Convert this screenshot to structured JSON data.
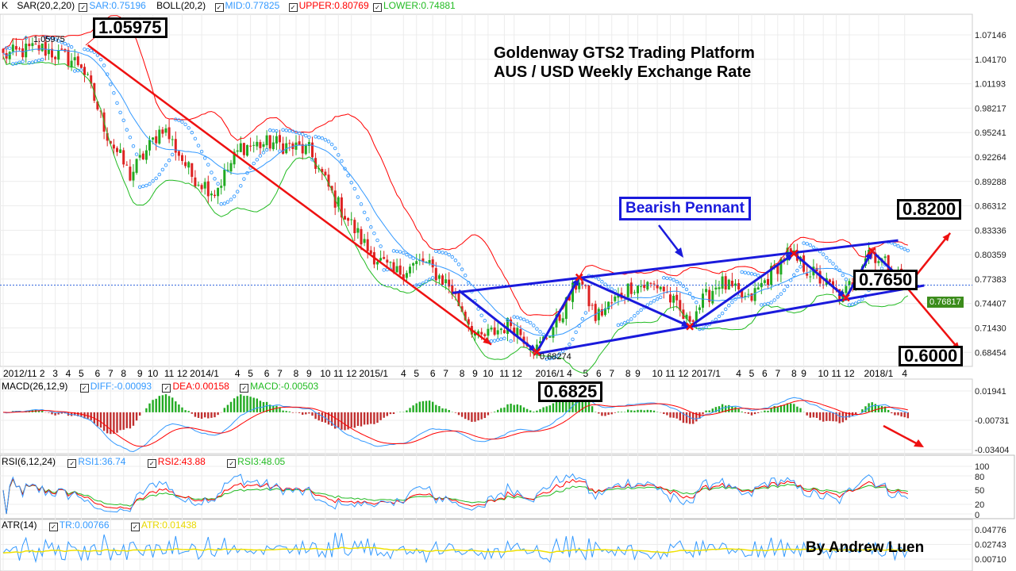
{
  "legends": {
    "main": {
      "k": "K",
      "sar": "SAR(20,2,20)",
      "sar_val": "SAR:0.75196",
      "boll": "BOLL(20,2)",
      "mid": "MID:0.77825",
      "upper": "UPPER:0.80769",
      "lower": "LOWER:0.74881"
    },
    "macd": {
      "name": "MACD(26,12,9)",
      "diff": "DIFF:-0.00093",
      "dea": "DEA:0.00158",
      "macd": "MACD:-0.00503"
    },
    "rsi": {
      "name": "RSI(6,12,24)",
      "rsi1": "RSI1:36.74",
      "rsi2": "RSI2:43.88",
      "rsi3": "RSI3:48.05"
    },
    "atr": {
      "name": "ATR(14)",
      "tr": "TR:0.00766",
      "atr": "ATR:0.01438"
    }
  },
  "title_line1": "Goldenway GTS2 Trading Platform",
  "title_line2": "AUS / USD Weekly Exchange Rate",
  "pennant_label": "Bearish Pennant",
  "author": "By Andrew Luen",
  "callouts": {
    "high": "1.05975",
    "target_up": "0.8200",
    "current": "0.7650",
    "target_down": "0.6000",
    "low": "0.6825"
  },
  "high_marker": "1.05975",
  "low_marker": "0.68274",
  "current_price_tag": "0.76817",
  "colors": {
    "up": "#22aa22",
    "down": "#dd2222",
    "mid": "#3399ff",
    "upper": "#ff0000",
    "lower": "#22bb22",
    "sar": "#3399ff",
    "annotation_blue": "#1a1adc",
    "annotation_red": "#ee1111",
    "atr": "#f0e000"
  },
  "chart_data": {
    "type": "candlestick",
    "title": "AUS / USD Weekly Exchange Rate",
    "x_tick_labels": [
      {
        "label": "2012/11",
        "week": 0
      },
      {
        "label": "2",
        "week": 12
      },
      {
        "label": "3",
        "week": 16
      },
      {
        "label": "4",
        "week": 20
      },
      {
        "label": "5",
        "week": 24
      },
      {
        "label": "6",
        "week": 29
      },
      {
        "label": "7",
        "week": 33
      },
      {
        "label": "8",
        "week": 37
      },
      {
        "label": "9",
        "week": 42
      },
      {
        "label": "10",
        "week": 46
      },
      {
        "label": "11",
        "week": 51
      },
      {
        "label": "12",
        "week": 55
      },
      {
        "label": "2014/1",
        "week": 61
      },
      {
        "label": "4",
        "week": 72
      },
      {
        "label": "5",
        "week": 76
      },
      {
        "label": "6",
        "week": 81
      },
      {
        "label": "7",
        "week": 85
      },
      {
        "label": "8",
        "week": 90
      },
      {
        "label": "9",
        "week": 94
      },
      {
        "label": "10",
        "week": 99
      },
      {
        "label": "11",
        "week": 103
      },
      {
        "label": "12",
        "week": 107
      },
      {
        "label": "2015/1",
        "week": 113
      },
      {
        "label": "4",
        "week": 123
      },
      {
        "label": "5",
        "week": 127
      },
      {
        "label": "6",
        "week": 132
      },
      {
        "label": "7",
        "week": 136
      },
      {
        "label": "8",
        "week": 141
      },
      {
        "label": "9",
        "week": 145
      },
      {
        "label": "10",
        "week": 149
      },
      {
        "label": "11",
        "week": 154
      },
      {
        "label": "12",
        "week": 157
      },
      {
        "label": "2016/1",
        "week": 168
      },
      {
        "label": "4",
        "week": 174
      },
      {
        "label": "5",
        "week": 179
      },
      {
        "label": "6",
        "week": 183
      },
      {
        "label": "7",
        "week": 187
      },
      {
        "label": "8",
        "week": 192
      },
      {
        "label": "9",
        "week": 195
      },
      {
        "label": "10",
        "week": 201
      },
      {
        "label": "11",
        "week": 205
      },
      {
        "label": "12",
        "week": 209
      },
      {
        "label": "2017/1",
        "week": 216
      },
      {
        "label": "4",
        "week": 226
      },
      {
        "label": "5",
        "week": 230
      },
      {
        "label": "6",
        "week": 234
      },
      {
        "label": "7",
        "week": 238
      },
      {
        "label": "8",
        "week": 243
      },
      {
        "label": "9",
        "week": 246
      },
      {
        "label": "10",
        "week": 252
      },
      {
        "label": "11",
        "week": 256
      },
      {
        "label": "12",
        "week": 260
      },
      {
        "label": "2018/1",
        "week": 269
      },
      {
        "label": "4",
        "week": 277
      }
    ],
    "price_axis": {
      "ticks": [
        "1.07146",
        "1.04170",
        "1.01193",
        "0.98217",
        "0.95241",
        "0.92264",
        "0.89288",
        "0.86312",
        "0.83336",
        "0.80359",
        "0.77383",
        "0.74407",
        "0.71430",
        "0.68454"
      ],
      "range": [
        0.665,
        1.09
      ]
    },
    "macd_axis": {
      "ticks": [
        "0.01941",
        "-0.00731",
        "-0.03404"
      ],
      "range": [
        -0.03404,
        0.01941
      ]
    },
    "rsi_axis": {
      "ticks": [
        "100",
        "80",
        "50",
        "20",
        "0"
      ],
      "range": [
        0,
        100
      ]
    },
    "atr_axis": {
      "ticks": [
        "0.04776",
        "0.02743",
        "0.00710"
      ],
      "range": [
        0.0071,
        0.04776
      ]
    },
    "weeks": 279,
    "close_path": [
      [
        0,
        1.046
      ],
      [
        11,
        1.056
      ],
      [
        24,
        1.036
      ],
      [
        32,
        0.95
      ],
      [
        39,
        0.9
      ],
      [
        49,
        0.96
      ],
      [
        58,
        0.9
      ],
      [
        65,
        0.88
      ],
      [
        73,
        0.935
      ],
      [
        83,
        0.94
      ],
      [
        94,
        0.93
      ],
      [
        102,
        0.87
      ],
      [
        112,
        0.81
      ],
      [
        120,
        0.78
      ],
      [
        129,
        0.795
      ],
      [
        137,
        0.766
      ],
      [
        146,
        0.7
      ],
      [
        156,
        0.72
      ],
      [
        164,
        0.688
      ],
      [
        171,
        0.727
      ],
      [
        177,
        0.775
      ],
      [
        182,
        0.727
      ],
      [
        193,
        0.766
      ],
      [
        202,
        0.766
      ],
      [
        210,
        0.722
      ],
      [
        220,
        0.771
      ],
      [
        229,
        0.747
      ],
      [
        241,
        0.805
      ],
      [
        249,
        0.78
      ],
      [
        258,
        0.751
      ],
      [
        266,
        0.81
      ],
      [
        278,
        0.768
      ]
    ],
    "annotations": {
      "downtrend_line": [
        [
          26,
          1.059
        ],
        [
          150,
          0.694
        ]
      ],
      "pennant_upper": [
        [
          138,
          0.757
        ],
        [
          275,
          0.821
        ]
      ],
      "pennant_lower": [
        [
          164,
          0.683
        ],
        [
          283,
          0.766
        ]
      ],
      "zigzag": [
        [
          140,
          0.76
        ],
        [
          164,
          0.685
        ],
        [
          177,
          0.776
        ],
        [
          211,
          0.716
        ],
        [
          243,
          0.805
        ],
        [
          259,
          0.751
        ],
        [
          267,
          0.808
        ],
        [
          278,
          0.766
        ]
      ],
      "arrow_up": [
        [
          278,
          0.766
        ],
        [
          291,
          0.83
        ]
      ],
      "arrow_down": [
        [
          278,
          0.762
        ],
        [
          294,
          0.687
        ]
      ],
      "current_line": 0.7665
    }
  }
}
